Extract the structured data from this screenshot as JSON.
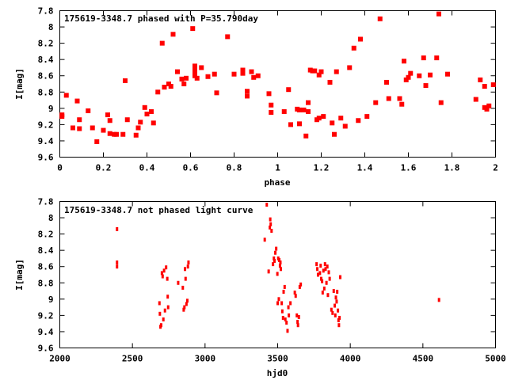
{
  "chart_data": [
    {
      "type": "scatter",
      "title": "175619-3348.7 phased with P=35.790day",
      "xlabel": "phase",
      "ylabel": "I[mag]",
      "xlim": [
        0,
        2
      ],
      "ylim": [
        9.6,
        7.8
      ],
      "y_inverted": true,
      "x_ticks": [
        "0",
        "0.2",
        "0.4",
        "0.6",
        "0.8",
        "1",
        "1.2",
        "1.4",
        "1.6",
        "1.8",
        "2"
      ],
      "x_tick_values": [
        0,
        0.2,
        0.4,
        0.6,
        0.8,
        1.0,
        1.2,
        1.4,
        1.6,
        1.8,
        2.0
      ],
      "y_ticks": [
        "7.8",
        "8",
        "8.2",
        "8.4",
        "8.6",
        "8.8",
        "9",
        "9.2",
        "9.4",
        "9.6"
      ],
      "y_tick_values": [
        7.8,
        8.0,
        8.2,
        8.4,
        8.6,
        8.8,
        9.0,
        9.2,
        9.4,
        9.6
      ],
      "marker_color": "#ff0000",
      "grid": false,
      "points": [
        [
          0.01,
          9.08
        ],
        [
          0.01,
          9.1
        ],
        [
          0.03,
          8.84
        ],
        [
          0.06,
          9.24
        ],
        [
          0.08,
          8.91
        ],
        [
          0.09,
          9.14
        ],
        [
          0.09,
          9.25
        ],
        [
          0.13,
          9.03
        ],
        [
          0.15,
          9.24
        ],
        [
          0.17,
          9.41
        ],
        [
          0.2,
          9.27
        ],
        [
          0.22,
          9.08
        ],
        [
          0.23,
          9.15
        ],
        [
          0.23,
          9.31
        ],
        [
          0.25,
          9.32
        ],
        [
          0.26,
          9.32
        ],
        [
          0.29,
          9.32
        ],
        [
          0.3,
          8.66
        ],
        [
          0.31,
          9.14
        ],
        [
          0.35,
          9.33
        ],
        [
          0.36,
          9.24
        ],
        [
          0.37,
          9.17
        ],
        [
          0.39,
          8.99
        ],
        [
          0.4,
          9.07
        ],
        [
          0.42,
          9.04
        ],
        [
          0.43,
          9.18
        ],
        [
          0.45,
          8.8
        ],
        [
          0.47,
          8.2
        ],
        [
          0.48,
          8.74
        ],
        [
          0.5,
          8.7
        ],
        [
          0.51,
          8.73
        ],
        [
          0.52,
          8.09
        ],
        [
          0.54,
          8.55
        ],
        [
          0.56,
          8.64
        ],
        [
          0.57,
          8.7
        ],
        [
          0.58,
          8.63
        ],
        [
          0.61,
          8.02
        ],
        [
          0.62,
          8.48
        ],
        [
          0.62,
          8.52
        ],
        [
          0.62,
          8.56
        ],
        [
          0.62,
          8.6
        ],
        [
          0.63,
          8.63
        ],
        [
          0.65,
          8.5
        ],
        [
          0.68,
          8.61
        ],
        [
          0.71,
          8.58
        ],
        [
          0.72,
          8.81
        ],
        [
          0.77,
          8.12
        ],
        [
          0.8,
          8.58
        ],
        [
          0.84,
          8.53
        ],
        [
          0.84,
          8.57
        ],
        [
          0.86,
          8.79
        ],
        [
          0.86,
          8.85
        ],
        [
          0.88,
          8.55
        ],
        [
          0.89,
          8.62
        ],
        [
          0.91,
          8.6
        ],
        [
          0.96,
          8.82
        ],
        [
          0.97,
          8.96
        ],
        [
          0.97,
          9.05
        ],
        [
          1.03,
          9.04
        ],
        [
          1.05,
          8.77
        ],
        [
          1.06,
          9.2
        ],
        [
          1.09,
          9.01
        ],
        [
          1.1,
          9.02
        ],
        [
          1.1,
          9.19
        ],
        [
          1.12,
          9.02
        ],
        [
          1.13,
          9.34
        ],
        [
          1.14,
          8.93
        ],
        [
          1.14,
          9.04
        ],
        [
          1.15,
          8.53
        ],
        [
          1.16,
          8.54
        ],
        [
          1.17,
          8.54
        ],
        [
          1.18,
          9.14
        ],
        [
          1.19,
          8.59
        ],
        [
          1.19,
          9.12
        ],
        [
          1.2,
          8.55
        ],
        [
          1.21,
          9.1
        ],
        [
          1.24,
          8.68
        ],
        [
          1.25,
          9.18
        ],
        [
          1.26,
          9.32
        ],
        [
          1.27,
          8.55
        ],
        [
          1.29,
          9.12
        ],
        [
          1.31,
          9.22
        ],
        [
          1.33,
          8.5
        ],
        [
          1.35,
          8.26
        ],
        [
          1.37,
          9.15
        ],
        [
          1.38,
          8.15
        ],
        [
          1.41,
          9.1
        ],
        [
          1.45,
          8.93
        ],
        [
          1.47,
          7.9
        ],
        [
          1.5,
          8.68
        ],
        [
          1.51,
          8.88
        ],
        [
          1.56,
          8.88
        ],
        [
          1.56,
          8.88
        ],
        [
          1.57,
          8.95
        ],
        [
          1.58,
          8.42
        ],
        [
          1.59,
          8.65
        ],
        [
          1.6,
          8.62
        ],
        [
          1.61,
          8.57
        ],
        [
          1.65,
          8.6
        ],
        [
          1.67,
          8.38
        ],
        [
          1.68,
          8.72
        ],
        [
          1.7,
          8.59
        ],
        [
          1.73,
          8.38
        ],
        [
          1.74,
          7.84
        ],
        [
          1.75,
          8.93
        ],
        [
          1.78,
          8.58
        ],
        [
          1.91,
          8.89
        ],
        [
          1.93,
          8.65
        ],
        [
          1.95,
          8.73
        ],
        [
          1.95,
          8.99
        ],
        [
          1.96,
          9.01
        ],
        [
          1.97,
          8.97
        ],
        [
          1.99,
          8.71
        ]
      ]
    },
    {
      "type": "scatter",
      "title": "175619-3348.7 not phased light curve",
      "xlabel": "hjd0",
      "ylabel": "I[mag]",
      "xlim": [
        2000,
        5000
      ],
      "ylim": [
        9.6,
        7.8
      ],
      "y_inverted": true,
      "x_ticks": [
        "2000",
        "2500",
        "3000",
        "3500",
        "4000",
        "4500",
        "5000"
      ],
      "x_tick_values": [
        2000,
        2500,
        3000,
        3500,
        4000,
        4500,
        5000
      ],
      "y_ticks": [
        "7.8",
        "8",
        "8.2",
        "8.4",
        "8.6",
        "8.8",
        "9",
        "9.2",
        "9.4",
        "9.6"
      ],
      "y_tick_values": [
        7.8,
        8.0,
        8.2,
        8.4,
        8.6,
        8.8,
        9.0,
        9.2,
        9.4,
        9.6
      ],
      "marker_color": "#ff0000",
      "grid": false,
      "points": [
        [
          2394,
          8.14
        ],
        [
          2394,
          8.55
        ],
        [
          2394,
          8.6
        ],
        [
          2686,
          9.05
        ],
        [
          2689,
          9.18
        ],
        [
          2693,
          9.34
        ],
        [
          2698,
          9.32
        ],
        [
          2703,
          8.68
        ],
        [
          2708,
          8.72
        ],
        [
          2713,
          9.25
        ],
        [
          2718,
          8.65
        ],
        [
          2724,
          9.14
        ],
        [
          2732,
          8.61
        ],
        [
          2740,
          8.75
        ],
        [
          2743,
          8.97
        ],
        [
          2746,
          9.1
        ],
        [
          2815,
          8.8
        ],
        [
          2847,
          8.86
        ],
        [
          2853,
          9.13
        ],
        [
          2858,
          9.1
        ],
        [
          2862,
          8.63
        ],
        [
          2866,
          8.75
        ],
        [
          2872,
          9.06
        ],
        [
          2878,
          9.02
        ],
        [
          2882,
          8.6
        ],
        [
          2886,
          8.55
        ],
        [
          3411,
          8.27
        ],
        [
          3425,
          7.84
        ],
        [
          3438,
          8.66
        ],
        [
          3446,
          8.12
        ],
        [
          3449,
          8.02
        ],
        [
          3452,
          8.08
        ],
        [
          3458,
          8.16
        ],
        [
          3468,
          8.57
        ],
        [
          3474,
          8.5
        ],
        [
          3478,
          8.53
        ],
        [
          3484,
          8.43
        ],
        [
          3490,
          8.38
        ],
        [
          3498,
          8.69
        ],
        [
          3500,
          9.05
        ],
        [
          3504,
          8.5
        ],
        [
          3508,
          9.0
        ],
        [
          3511,
          8.52
        ],
        [
          3516,
          8.59
        ],
        [
          3519,
          8.55
        ],
        [
          3522,
          8.63
        ],
        [
          3528,
          9.05
        ],
        [
          3532,
          9.15
        ],
        [
          3537,
          9.23
        ],
        [
          3541,
          8.91
        ],
        [
          3548,
          8.85
        ],
        [
          3553,
          9.25
        ],
        [
          3561,
          9.29
        ],
        [
          3568,
          9.39
        ],
        [
          3574,
          9.1
        ],
        [
          3577,
          9.2
        ],
        [
          3588,
          9.05
        ],
        [
          3618,
          8.92
        ],
        [
          3624,
          8.96
        ],
        [
          3632,
          9.2
        ],
        [
          3637,
          9.28
        ],
        [
          3640,
          9.32
        ],
        [
          3646,
          9.22
        ],
        [
          3652,
          8.85
        ],
        [
          3659,
          8.82
        ],
        [
          3768,
          8.57
        ],
        [
          3773,
          8.63
        ],
        [
          3778,
          8.7
        ],
        [
          3791,
          8.68
        ],
        [
          3796,
          8.59
        ],
        [
          3800,
          8.75
        ],
        [
          3806,
          8.78
        ],
        [
          3810,
          8.92
        ],
        [
          3815,
          8.65
        ],
        [
          3821,
          8.87
        ],
        [
          3826,
          8.57
        ],
        [
          3830,
          8.63
        ],
        [
          3836,
          8.8
        ],
        [
          3842,
          8.6
        ],
        [
          3846,
          8.95
        ],
        [
          3852,
          8.67
        ],
        [
          3858,
          8.75
        ],
        [
          3870,
          9.13
        ],
        [
          3878,
          9.17
        ],
        [
          3886,
          8.9
        ],
        [
          3893,
          9.08
        ],
        [
          3897,
          9.2
        ],
        [
          3901,
          8.98
        ],
        [
          3906,
          9.03
        ],
        [
          3910,
          8.91
        ],
        [
          3915,
          9.14
        ],
        [
          3919,
          9.26
        ],
        [
          3922,
          9.32
        ],
        [
          3926,
          9.23
        ],
        [
          3931,
          8.73
        ],
        [
          4611,
          9.01
        ]
      ]
    }
  ]
}
